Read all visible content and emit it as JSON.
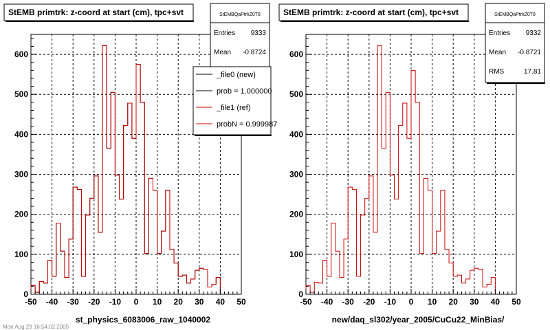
{
  "chart_data": [
    {
      "type": "histogram",
      "title": "StEMB primtrk: z-coord at start (cm), tpc+svt",
      "xlabel": "st_physics_6083006_raw_1040002",
      "ylabel": "",
      "xlim": [
        -50,
        50
      ],
      "ylim": [
        0,
        650
      ],
      "xticks": [
        -50,
        -40,
        -30,
        -20,
        -10,
        0,
        10,
        20,
        30,
        40,
        50
      ],
      "yticks": [
        0,
        100,
        200,
        300,
        400,
        500,
        600
      ],
      "grid": true,
      "bin_edges_start": -50,
      "bin_width": 2,
      "series": [
        {
          "name": "_file0 (new)",
          "color": "#000000",
          "values": [
            22,
            5,
            32,
            28,
            85,
            45,
            178,
            108,
            42,
            138,
            268,
            262,
            45,
            198,
            240,
            296,
            155,
            622,
            365,
            505,
            298,
            238,
            422,
            478,
            390,
            575,
            480,
            102,
            290,
            260,
            102,
            158,
            260,
            112,
            78,
            45,
            48,
            28,
            38,
            60,
            65,
            62,
            18,
            25,
            42
          ]
        },
        {
          "name": "_file1 (ref)",
          "color": "#cc0000",
          "values": [
            22,
            5,
            32,
            28,
            85,
            45,
            178,
            108,
            42,
            138,
            268,
            262,
            45,
            198,
            240,
            296,
            155,
            622,
            365,
            505,
            298,
            238,
            422,
            478,
            390,
            575,
            480,
            102,
            290,
            260,
            102,
            158,
            260,
            112,
            78,
            45,
            48,
            28,
            38,
            60,
            65,
            62,
            18,
            25,
            42
          ]
        }
      ],
      "stats": {
        "header": "StEMBQaPtrkZ0T8",
        "rows": [
          {
            "label": "Entries",
            "value": "9333"
          },
          {
            "label": "Mean",
            "value": "-0.8724"
          }
        ]
      },
      "legend": [
        {
          "label": "_file0 (new)",
          "color": "#000000"
        },
        {
          "label": "prob = 1.000000",
          "color": "#000000"
        },
        {
          "label": "_file1 (ref)",
          "color": "#cc0000"
        },
        {
          "label": "probN = 0.999987",
          "color": "#cc0000"
        }
      ]
    },
    {
      "type": "histogram",
      "title": "StEMB primtrk: z-coord at start (cm), tpc+svt",
      "xlabel": "new/daq_sl302/year_2005/CuCu22_MinBias/",
      "ylabel": "",
      "xlim": [
        -50,
        50
      ],
      "ylim": [
        0,
        650
      ],
      "xticks": [
        -50,
        -40,
        -30,
        -20,
        -10,
        0,
        10,
        20,
        30,
        40,
        50
      ],
      "yticks": [
        0,
        100,
        200,
        300,
        400,
        500,
        600
      ],
      "grid": true,
      "bin_edges_start": -50,
      "bin_width": 2,
      "series": [
        {
          "name": "",
          "color": "#cc0000",
          "values": [
            22,
            5,
            30,
            28,
            85,
            45,
            178,
            108,
            42,
            138,
            268,
            262,
            45,
            198,
            240,
            296,
            155,
            622,
            365,
            505,
            298,
            238,
            422,
            478,
            390,
            560,
            480,
            102,
            290,
            260,
            102,
            158,
            260,
            112,
            78,
            45,
            48,
            28,
            38,
            60,
            65,
            62,
            18,
            25,
            42
          ]
        }
      ],
      "stats": {
        "header": "StEMBQaPtrkZ0T8",
        "rows": [
          {
            "label": "Entries",
            "value": "9332"
          },
          {
            "label": "Mean",
            "value": "-0.8721"
          },
          {
            "label": "RMS",
            "value": "17.81"
          }
        ]
      },
      "legend": []
    }
  ],
  "footer": "Mon Aug 29 16:54:02 2005"
}
